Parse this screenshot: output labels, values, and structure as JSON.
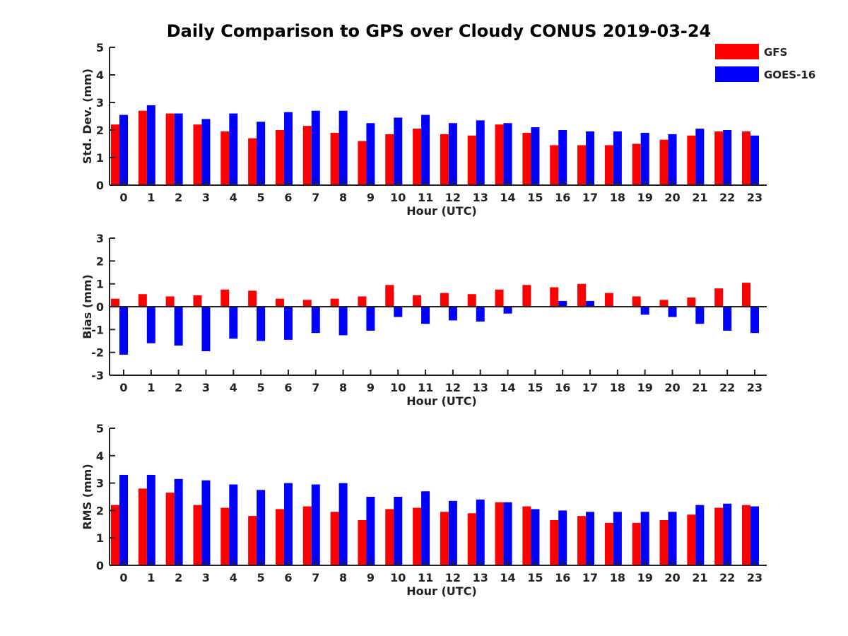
{
  "title": "Daily Comparison to GPS over Cloudy CONUS 2019-03-24",
  "colors": {
    "GFS": "#ff0000",
    "GOES-16": "#0000ff",
    "axis": "#222222"
  },
  "legend": {
    "placement": "top-right",
    "items": [
      "GFS",
      "GOES-16"
    ]
  },
  "chart_data": [
    {
      "type": "bar",
      "xlabel": "Hour (UTC)",
      "ylabel": "Std. Dev. (mm)",
      "ylim": [
        0,
        5
      ],
      "yticks": [
        0,
        1,
        2,
        3,
        4,
        5
      ],
      "categories": [
        "0",
        "1",
        "2",
        "3",
        "4",
        "5",
        "6",
        "7",
        "8",
        "9",
        "10",
        "11",
        "12",
        "13",
        "14",
        "15",
        "16",
        "17",
        "18",
        "19",
        "20",
        "21",
        "22",
        "23"
      ],
      "series": [
        {
          "name": "GFS",
          "values": [
            2.2,
            2.7,
            2.6,
            2.2,
            1.95,
            1.7,
            2.0,
            2.15,
            1.9,
            1.6,
            1.85,
            2.05,
            1.85,
            1.8,
            2.2,
            1.9,
            1.45,
            1.45,
            1.45,
            1.5,
            1.65,
            1.8,
            1.95,
            1.95
          ]
        },
        {
          "name": "GOES-16",
          "values": [
            2.55,
            2.9,
            2.6,
            2.4,
            2.6,
            2.3,
            2.65,
            2.7,
            2.7,
            2.25,
            2.45,
            2.55,
            2.25,
            2.35,
            2.25,
            2.1,
            2.0,
            1.95,
            1.95,
            1.9,
            1.85,
            2.05,
            2.0,
            1.8
          ]
        }
      ]
    },
    {
      "type": "bar",
      "xlabel": "Hour (UTC)",
      "ylabel": "Bias (mm)",
      "ylim": [
        -3,
        3
      ],
      "yticks": [
        -3,
        -2,
        -1,
        0,
        1,
        2,
        3
      ],
      "categories": [
        "0",
        "1",
        "2",
        "3",
        "4",
        "5",
        "6",
        "7",
        "8",
        "9",
        "10",
        "11",
        "12",
        "13",
        "14",
        "15",
        "16",
        "17",
        "18",
        "19",
        "20",
        "21",
        "22",
        "23"
      ],
      "series": [
        {
          "name": "GFS",
          "values": [
            0.35,
            0.55,
            0.45,
            0.5,
            0.75,
            0.7,
            0.35,
            0.3,
            0.35,
            0.45,
            0.95,
            0.5,
            0.6,
            0.55,
            0.75,
            0.95,
            0.85,
            1.0,
            0.6,
            0.45,
            0.3,
            0.4,
            0.8,
            1.05
          ]
        },
        {
          "name": "GOES-16",
          "values": [
            -2.1,
            -1.6,
            -1.7,
            -1.95,
            -1.4,
            -1.5,
            -1.45,
            -1.15,
            -1.25,
            -1.05,
            -0.45,
            -0.75,
            -0.6,
            -0.65,
            -0.3,
            0.0,
            0.25,
            0.25,
            0.0,
            -0.35,
            -0.45,
            -0.75,
            -1.05,
            -1.15
          ]
        }
      ]
    },
    {
      "type": "bar",
      "xlabel": "Hour (UTC)",
      "ylabel": "RMS (mm)",
      "ylim": [
        0,
        5
      ],
      "yticks": [
        0,
        1,
        2,
        3,
        4,
        5
      ],
      "categories": [
        "0",
        "1",
        "2",
        "3",
        "4",
        "5",
        "6",
        "7",
        "8",
        "9",
        "10",
        "11",
        "12",
        "13",
        "14",
        "15",
        "16",
        "17",
        "18",
        "19",
        "20",
        "21",
        "22",
        "23"
      ],
      "series": [
        {
          "name": "GFS",
          "values": [
            2.2,
            2.8,
            2.65,
            2.2,
            2.1,
            1.8,
            2.05,
            2.15,
            1.95,
            1.65,
            2.05,
            2.1,
            1.95,
            1.9,
            2.3,
            2.15,
            1.65,
            1.8,
            1.55,
            1.55,
            1.65,
            1.85,
            2.1,
            2.2
          ]
        },
        {
          "name": "GOES-16",
          "values": [
            3.3,
            3.3,
            3.15,
            3.1,
            2.95,
            2.75,
            3.0,
            2.95,
            3.0,
            2.5,
            2.5,
            2.7,
            2.35,
            2.4,
            2.3,
            2.05,
            2.0,
            1.95,
            1.95,
            1.95,
            1.95,
            2.2,
            2.25,
            2.15
          ]
        }
      ]
    }
  ]
}
